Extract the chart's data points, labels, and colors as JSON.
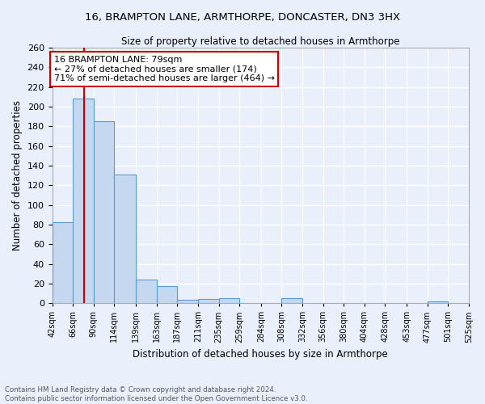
{
  "title1": "16, BRAMPTON LANE, ARMTHORPE, DONCASTER, DN3 3HX",
  "title2": "Size of property relative to detached houses in Armthorpe",
  "xlabel": "Distribution of detached houses by size in Armthorpe",
  "ylabel": "Number of detached properties",
  "footer1": "Contains HM Land Registry data © Crown copyright and database right 2024.",
  "footer2": "Contains public sector information licensed under the Open Government Licence v3.0.",
  "bin_labels": [
    "42sqm",
    "66sqm",
    "90sqm",
    "114sqm",
    "139sqm",
    "163sqm",
    "187sqm",
    "211sqm",
    "235sqm",
    "259sqm",
    "284sqm",
    "308sqm",
    "332sqm",
    "356sqm",
    "380sqm",
    "404sqm",
    "428sqm",
    "453sqm",
    "477sqm",
    "501sqm",
    "525sqm"
  ],
  "bar_heights": [
    82,
    208,
    185,
    131,
    24,
    17,
    3,
    4,
    5,
    0,
    0,
    5,
    0,
    0,
    0,
    0,
    0,
    0,
    2,
    0
  ],
  "bar_color": "#c5d8f0",
  "bar_edge_color": "#5b9bd5",
  "bg_color": "#eaf0fb",
  "grid_color": "#ffffff",
  "vline_x": 79,
  "vline_color": "#cc0000",
  "annotation_text": "16 BRAMPTON LANE: 79sqm\n← 27% of detached houses are smaller (174)\n71% of semi-detached houses are larger (464) →",
  "annotation_box_color": "#ffffff",
  "annotation_box_edge": "#cc0000",
  "ylim": [
    0,
    260
  ],
  "yticks": [
    0,
    20,
    40,
    60,
    80,
    100,
    120,
    140,
    160,
    180,
    200,
    220,
    240,
    260
  ],
  "bin_edges": [
    42,
    66,
    90,
    114,
    139,
    163,
    187,
    211,
    235,
    259,
    284,
    308,
    332,
    356,
    380,
    404,
    428,
    453,
    477,
    501,
    525
  ]
}
